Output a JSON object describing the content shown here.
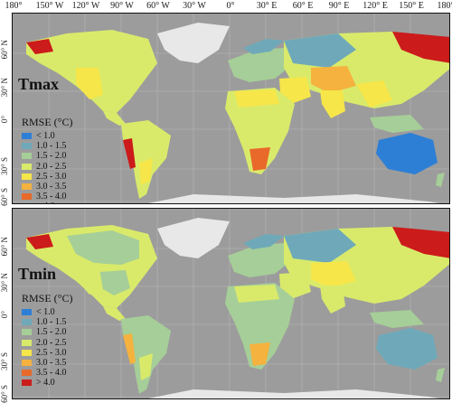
{
  "lon_labels": [
    "180°",
    "150° W",
    "120° W",
    "90° W",
    "60° W",
    "30° W",
    "0°",
    "30° E",
    "60° E",
    "90° E",
    "120° E",
    "150° E",
    "180°"
  ],
  "lat_labels": [
    "60° N",
    "30° N",
    "0°",
    "30° S",
    "60° S"
  ],
  "panels": [
    {
      "title": "Tmax"
    },
    {
      "title": "Tmin"
    }
  ],
  "legend": {
    "title": "RMSE (°C)",
    "items": [
      {
        "label": "< 1.0",
        "color": "#2d7fd6"
      },
      {
        "label": "1.0 - 1.5",
        "color": "#6fa9b9"
      },
      {
        "label": "1.5 - 2.0",
        "color": "#a6ce98"
      },
      {
        "label": "2.0 - 2.5",
        "color": "#d9ea6b"
      },
      {
        "label": "2.5 - 3.0",
        "color": "#f6e649"
      },
      {
        "label": "3.0 - 3.5",
        "color": "#f5b23e"
      },
      {
        "label": "3.5 - 4.0",
        "color": "#e8692a"
      },
      {
        "label": "> 4.0",
        "color": "#cc1b1b"
      }
    ]
  },
  "colors": {
    "ocean": "#9c9c9c",
    "ice": "#e8e8e8",
    "grid": "#b8b8b8"
  }
}
